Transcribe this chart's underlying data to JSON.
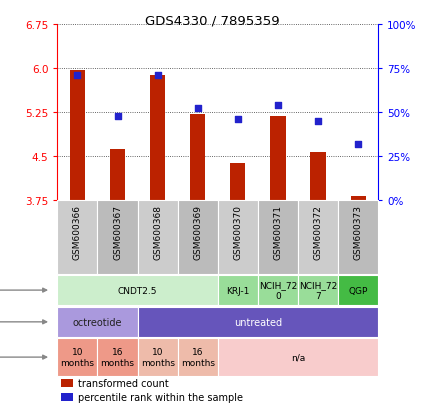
{
  "title": "GDS4330 / 7895359",
  "samples": [
    "GSM600366",
    "GSM600367",
    "GSM600368",
    "GSM600369",
    "GSM600370",
    "GSM600371",
    "GSM600372",
    "GSM600373"
  ],
  "transformed_count": [
    5.97,
    4.62,
    5.88,
    5.22,
    4.38,
    5.19,
    4.57,
    3.82
  ],
  "percentile_rank": [
    71,
    48,
    71,
    52,
    46,
    54,
    45,
    32
  ],
  "ylim": [
    3.75,
    6.75
  ],
  "yticks_left": [
    3.75,
    4.5,
    5.25,
    6.0,
    6.75
  ],
  "yticks_right": [
    0,
    25,
    50,
    75,
    100
  ],
  "ytick_labels_right": [
    "0%",
    "25%",
    "50%",
    "75%",
    "100%"
  ],
  "bar_color": "#bb2200",
  "dot_color": "#2222cc",
  "bar_width": 0.38,
  "cell_line_groups": [
    {
      "label": "CNDT2.5",
      "start": 0,
      "end": 3,
      "color": "#cceecc"
    },
    {
      "label": "KRJ-1",
      "start": 4,
      "end": 4,
      "color": "#99dd99"
    },
    {
      "label": "NCIH_72\n0",
      "start": 5,
      "end": 5,
      "color": "#99dd99"
    },
    {
      "label": "NCIH_72\n7",
      "start": 6,
      "end": 6,
      "color": "#99dd99"
    },
    {
      "label": "QGP",
      "start": 7,
      "end": 7,
      "color": "#44bb44"
    }
  ],
  "agent_groups": [
    {
      "label": "octreotide",
      "start": 0,
      "end": 1,
      "color": "#aa99dd"
    },
    {
      "label": "untreated",
      "start": 2,
      "end": 7,
      "color": "#6655bb"
    }
  ],
  "time_groups": [
    {
      "label": "10\nmonths",
      "start": 0,
      "end": 0,
      "color": "#ee9988"
    },
    {
      "label": "16\nmonths",
      "start": 1,
      "end": 1,
      "color": "#ee9988"
    },
    {
      "label": "10\nmonths",
      "start": 2,
      "end": 2,
      "color": "#eebbaa"
    },
    {
      "label": "16\nmonths",
      "start": 3,
      "end": 3,
      "color": "#eebbaa"
    },
    {
      "label": "n/a",
      "start": 4,
      "end": 7,
      "color": "#f8cccc"
    }
  ],
  "sample_bg_even": "#cccccc",
  "sample_bg_odd": "#bbbbbb",
  "bg_color": "#ffffff",
  "grid_color": "#333333",
  "label_fontsize": 7,
  "tick_fontsize": 7.5,
  "sample_fontsize": 6.5,
  "annot_fontsize": 7,
  "legend_fontsize": 7
}
